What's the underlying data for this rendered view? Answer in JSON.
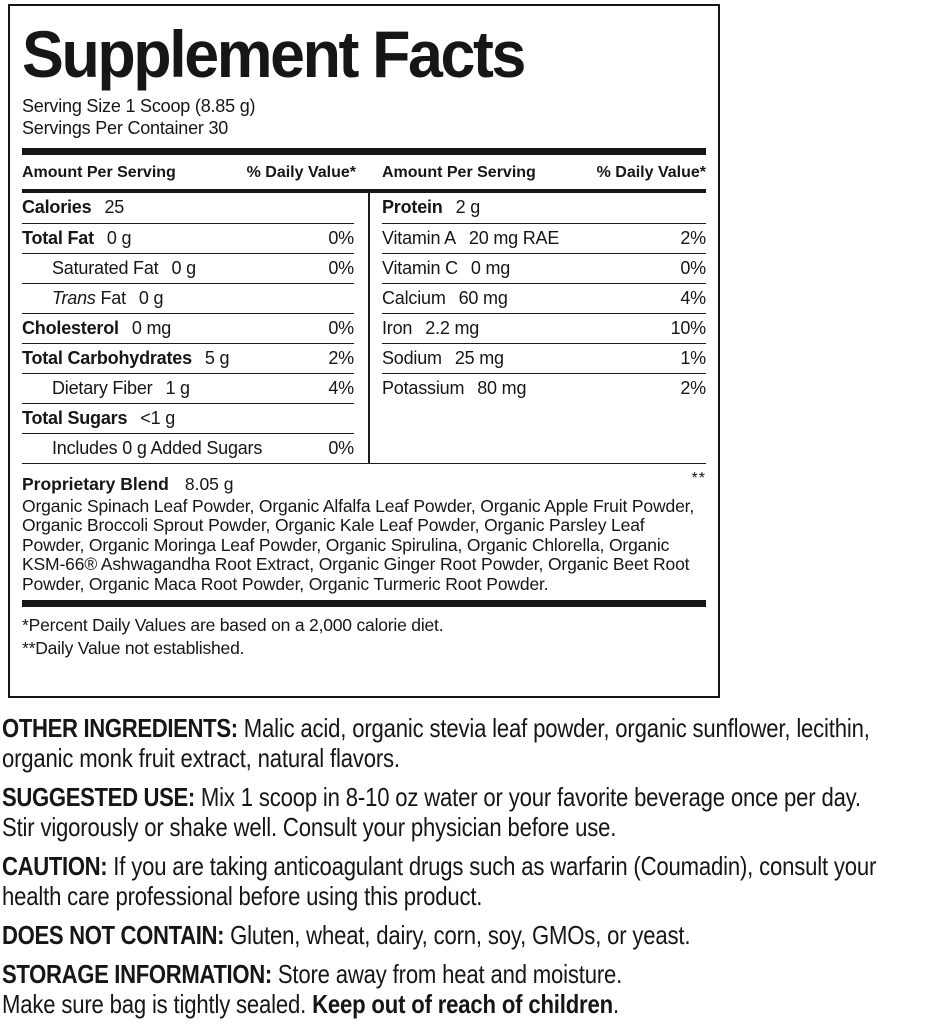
{
  "colors": {
    "ink": "#161616",
    "background": "#ffffff"
  },
  "label": {
    "title": "Supplement Facts",
    "serving_size": "Serving Size 1 Scoop (8.85 g)",
    "servings_per_container": "Servings Per Container 30",
    "header": {
      "amount": "Amount Per Serving",
      "daily_value": "% Daily Value*"
    },
    "left_rows": [
      {
        "name": "Calories",
        "amount": "25",
        "dv": ""
      },
      {
        "name": "Total Fat",
        "amount": "0 g",
        "dv": "0%"
      },
      {
        "name": "Saturated Fat",
        "amount": "0 g",
        "dv": "0%"
      },
      {
        "name_italic": "Trans",
        "name": " Fat",
        "amount": "0 g",
        "dv": ""
      },
      {
        "name": "Cholesterol",
        "amount": "0 mg",
        "dv": "0%"
      },
      {
        "name": "Total Carbohydrates",
        "amount": "5 g",
        "dv": "2%"
      },
      {
        "name": "Dietary Fiber",
        "amount": "1 g",
        "dv": "4%"
      },
      {
        "name": "Total Sugars",
        "amount": "<1 g",
        "dv": ""
      },
      {
        "name": "Includes 0 g Added Sugars",
        "amount": "",
        "dv": "0%"
      }
    ],
    "right_rows": [
      {
        "name": "Protein",
        "amount": "2 g",
        "dv": ""
      },
      {
        "name": "Vitamin A",
        "amount": "20 mg RAE",
        "dv": "2%"
      },
      {
        "name": "Vitamin C",
        "amount": "0 mg",
        "dv": "0%"
      },
      {
        "name": "Calcium",
        "amount": "60 mg",
        "dv": "4%"
      },
      {
        "name": "Iron",
        "amount": "2.2 mg",
        "dv": "10%"
      },
      {
        "name": "Sodium",
        "amount": "25 mg",
        "dv": "1%"
      },
      {
        "name": "Potassium",
        "amount": "80 mg",
        "dv": "2%"
      }
    ],
    "blend": {
      "name": "Proprietary Blend",
      "amount": "8.05 g",
      "marker": "**",
      "description": "Organic Spinach Leaf Powder, Organic Alfalfa Leaf Powder, Organic Apple Fruit Powder, Organic Broccoli Sprout Powder, Organic Kale Leaf Powder, Organic Parsley Leaf Powder, Organic Moringa Leaf Powder, Organic Spirulina, Organic Chlorella, Organic KSM-66® Ashwagandha Root Extract, Organic Ginger Root Powder, Organic Beet Root Powder, Organic Maca Root Powder, Organic Turmeric Root Powder."
    },
    "footnotes": [
      "*Percent Daily Values are based on a 2,000 calorie diet.",
      "**Daily Value not established."
    ]
  },
  "info_sections": [
    {
      "lead": "OTHER INGREDIENTS:",
      "text": " Malic acid, organic stevia leaf powder, organic sunflower, lecithin, organic monk fruit extract, natural flavors.",
      "bold_tail": "",
      "tail": ""
    },
    {
      "lead": "SUGGESTED USE:",
      "text": " Mix 1 scoop in 8-10 oz water or your favorite beverage once per day. Stir vigorously or shake well. Consult your physician before use.",
      "bold_tail": "",
      "tail": ""
    },
    {
      "lead": "CAUTION:",
      "text": " If you are taking anticoagulant drugs such as warfarin (Coumadin), consult your health care professional before using this product.",
      "bold_tail": "",
      "tail": ""
    },
    {
      "lead": "DOES NOT CONTAIN:",
      "text": " Gluten, wheat, dairy, corn, soy, GMOs, or yeast.",
      "bold_tail": "",
      "tail": ""
    },
    {
      "lead": "STORAGE INFORMATION:",
      "text": " Store away from heat and moisture.\nMake sure bag is tightly sealed. ",
      "bold_tail": "Keep out of reach of children",
      "tail": "."
    }
  ]
}
